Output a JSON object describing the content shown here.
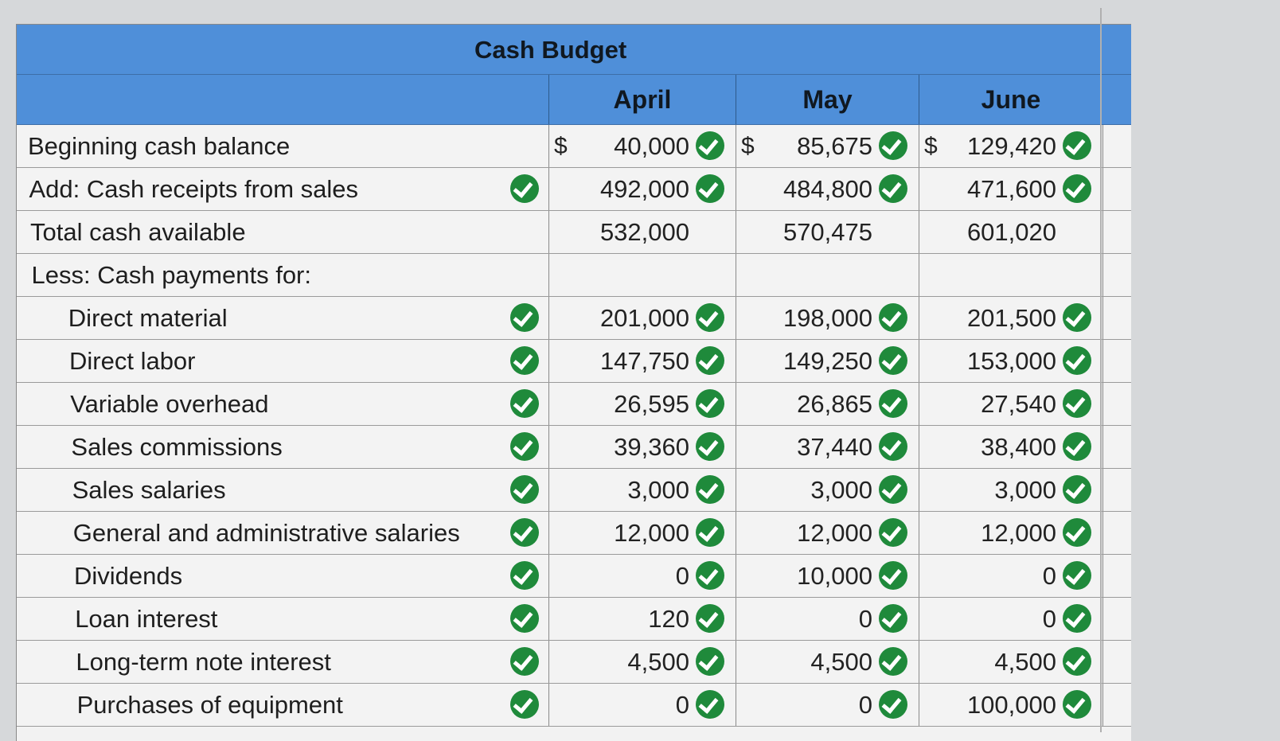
{
  "title": "Cash Budget",
  "months": [
    "April",
    "May",
    "June"
  ],
  "currency_symbol": "$",
  "rows": [
    {
      "label": "Beginning cash balance",
      "indent": 0,
      "label_check": false,
      "values": [
        "40,000",
        "85,675",
        "129,420"
      ],
      "value_checks": [
        true,
        true,
        true
      ],
      "show_dollar": true
    },
    {
      "label": "Add: Cash receipts from sales",
      "indent": 0,
      "label_check": true,
      "values": [
        "492,000",
        "484,800",
        "471,600"
      ],
      "value_checks": [
        true,
        true,
        true
      ],
      "show_dollar": false
    },
    {
      "label": "Total cash available",
      "indent": 0,
      "label_check": false,
      "values": [
        "532,000",
        "570,475",
        "601,020"
      ],
      "value_checks": [
        false,
        false,
        false
      ],
      "show_dollar": false
    },
    {
      "label": "Less: Cash payments for:",
      "indent": 0,
      "label_check": false,
      "values": [
        "",
        "",
        ""
      ],
      "value_checks": [
        false,
        false,
        false
      ],
      "show_dollar": false
    },
    {
      "label": "Direct material",
      "indent": 1,
      "label_check": true,
      "values": [
        "201,000",
        "198,000",
        "201,500"
      ],
      "value_checks": [
        true,
        true,
        true
      ],
      "show_dollar": false
    },
    {
      "label": "Direct labor",
      "indent": 1,
      "label_check": true,
      "values": [
        "147,750",
        "149,250",
        "153,000"
      ],
      "value_checks": [
        true,
        true,
        true
      ],
      "show_dollar": false
    },
    {
      "label": "Variable overhead",
      "indent": 1,
      "label_check": true,
      "values": [
        "26,595",
        "26,865",
        "27,540"
      ],
      "value_checks": [
        true,
        true,
        true
      ],
      "show_dollar": false
    },
    {
      "label": "Sales commissions",
      "indent": 1,
      "label_check": true,
      "values": [
        "39,360",
        "37,440",
        "38,400"
      ],
      "value_checks": [
        true,
        true,
        true
      ],
      "show_dollar": false
    },
    {
      "label": "Sales salaries",
      "indent": 1,
      "label_check": true,
      "values": [
        "3,000",
        "3,000",
        "3,000"
      ],
      "value_checks": [
        true,
        true,
        true
      ],
      "show_dollar": false
    },
    {
      "label": "General and administrative salaries",
      "indent": 1,
      "label_check": true,
      "values": [
        "12,000",
        "12,000",
        "12,000"
      ],
      "value_checks": [
        true,
        true,
        true
      ],
      "show_dollar": false
    },
    {
      "label": "Dividends",
      "indent": 1,
      "label_check": true,
      "values": [
        "0",
        "10,000",
        "0"
      ],
      "value_checks": [
        true,
        true,
        true
      ],
      "show_dollar": false
    },
    {
      "label": "Loan interest",
      "indent": 1,
      "label_check": true,
      "values": [
        "120",
        "0",
        "0"
      ],
      "value_checks": [
        true,
        true,
        true
      ],
      "show_dollar": false
    },
    {
      "label": "Long-term note interest",
      "indent": 1,
      "label_check": true,
      "values": [
        "4,500",
        "4,500",
        "4,500"
      ],
      "value_checks": [
        true,
        true,
        true
      ],
      "show_dollar": false
    },
    {
      "label": "Purchases of equipment",
      "indent": 1,
      "label_check": true,
      "values": [
        "0",
        "0",
        "100,000"
      ],
      "value_checks": [
        true,
        true,
        true
      ],
      "show_dollar": false
    }
  ],
  "colors": {
    "header_blue": "#4f8fd9",
    "check_green": "#1f8a3b",
    "row_bg": "#f3f3f3"
  }
}
